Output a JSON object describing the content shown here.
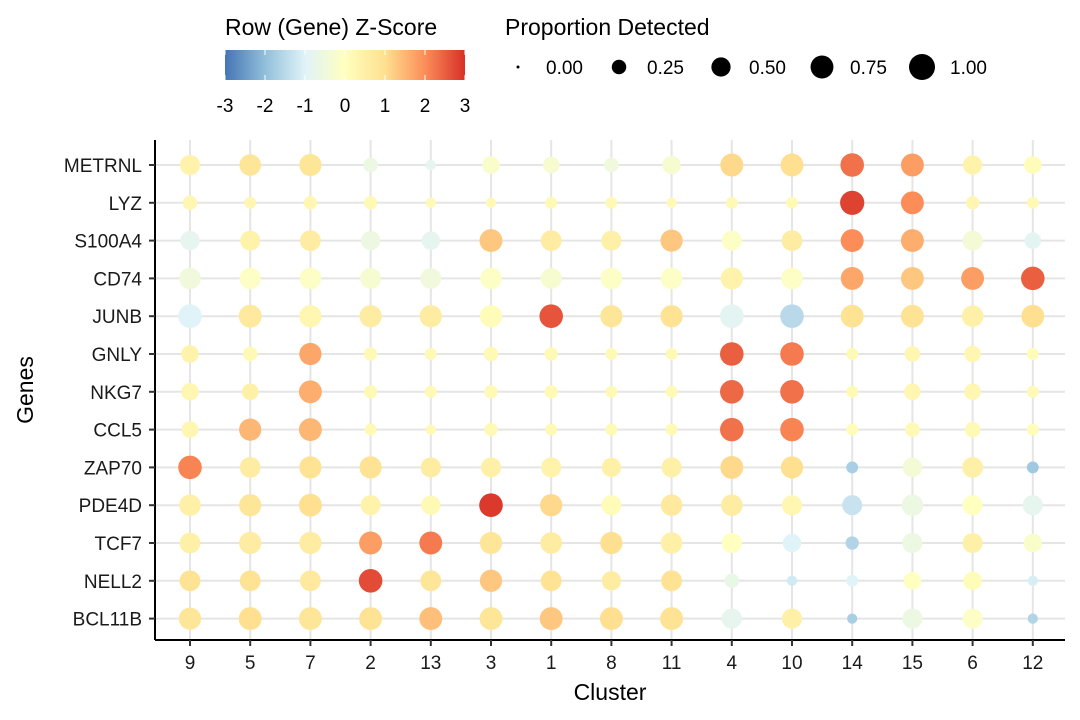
{
  "chart_data": {
    "type": "scatter",
    "subtype": "dot-plot",
    "xlabel": "Cluster",
    "ylabel": "Genes",
    "categories": [
      "9",
      "5",
      "7",
      "2",
      "13",
      "3",
      "1",
      "8",
      "11",
      "4",
      "10",
      "14",
      "15",
      "6",
      "12"
    ],
    "genes": [
      "METRNL",
      "LYZ",
      "S100A4",
      "CD74",
      "JUNB",
      "GNLY",
      "NKG7",
      "CCL5",
      "ZAP70",
      "PDE4D",
      "TCF7",
      "NELL2",
      "BCL11B"
    ],
    "grid": true,
    "legend_position": "top",
    "color_legend": {
      "title": "Row (Gene) Z-Score",
      "ticks": [
        "-3",
        "-2",
        "-1",
        "0",
        "1",
        "2",
        "3"
      ],
      "range": [
        -3,
        3
      ],
      "palette": [
        "#4575b4",
        "#91bfdb",
        "#e0f3f8",
        "#ffffbf",
        "#fee090",
        "#fc8d59",
        "#d73027"
      ]
    },
    "size_legend": {
      "title": "Proportion Detected",
      "values": [
        0.0,
        0.25,
        0.5,
        0.75,
        1.0
      ],
      "labels": [
        "0.00",
        "0.25",
        "0.50",
        "0.75",
        "1.00"
      ]
    },
    "zscore": [
      [
        0.4,
        0.8,
        0.8,
        -0.6,
        -0.8,
        -0.2,
        -0.3,
        -0.5,
        -0.3,
        1.1,
        1.0,
        2.3,
        1.8,
        0.4,
        0.1
      ],
      [
        0.3,
        0.3,
        0.3,
        0.2,
        0.2,
        0.2,
        0.2,
        0.2,
        0.2,
        0.2,
        0.2,
        2.8,
        2.0,
        0.3,
        0.2
      ],
      [
        -0.8,
        0.4,
        0.6,
        -0.6,
        -0.8,
        1.3,
        0.6,
        0.5,
        1.3,
        -0.1,
        0.6,
        2.0,
        1.6,
        -0.4,
        -0.9
      ],
      [
        -0.5,
        -0.1,
        -0.1,
        -0.3,
        -0.5,
        -0.1,
        -0.3,
        -0.1,
        -0.1,
        0.4,
        -0.1,
        1.7,
        1.3,
        1.8,
        2.5
      ],
      [
        -1.0,
        0.7,
        0.3,
        0.6,
        0.6,
        0.1,
        2.6,
        0.8,
        0.9,
        -0.9,
        -1.5,
        0.9,
        0.9,
        0.5,
        1.0
      ],
      [
        0.4,
        0.2,
        1.7,
        0.2,
        0.2,
        0.2,
        0.2,
        0.2,
        0.2,
        2.5,
        2.2,
        0.2,
        0.3,
        0.3,
        0.1
      ],
      [
        0.3,
        0.5,
        1.6,
        0.2,
        0.2,
        0.2,
        0.2,
        0.2,
        0.2,
        2.4,
        2.3,
        0.2,
        0.3,
        0.3,
        0.2
      ],
      [
        0.3,
        1.5,
        1.5,
        0.2,
        0.2,
        0.2,
        0.2,
        0.2,
        0.2,
        2.3,
        2.1,
        0.1,
        0.2,
        0.2,
        0.1
      ],
      [
        2.1,
        0.6,
        0.9,
        0.9,
        0.6,
        0.5,
        0.4,
        0.5,
        0.5,
        1.1,
        1.0,
        -1.7,
        -0.4,
        0.5,
        -1.8
      ],
      [
        0.5,
        0.8,
        1.0,
        0.4,
        0.2,
        2.9,
        1.1,
        0.1,
        0.7,
        0.6,
        0.3,
        -1.3,
        -0.6,
        0.0,
        -0.8
      ],
      [
        0.5,
        0.6,
        0.6,
        1.8,
        2.2,
        0.8,
        0.6,
        1.0,
        0.5,
        0.0,
        -1.0,
        -1.6,
        -0.6,
        0.5,
        -0.2
      ],
      [
        0.9,
        0.9,
        0.7,
        2.7,
        0.8,
        1.3,
        0.9,
        0.6,
        0.9,
        -0.7,
        -1.2,
        -1.0,
        0.0,
        0.1,
        -1.1
      ],
      [
        0.8,
        1.0,
        0.8,
        0.9,
        1.4,
        0.8,
        1.3,
        1.0,
        0.9,
        -0.8,
        0.5,
        -1.7,
        -0.6,
        -0.1,
        -1.6
      ]
    ],
    "proportion": [
      [
        0.55,
        0.65,
        0.7,
        0.25,
        0.1,
        0.4,
        0.35,
        0.25,
        0.45,
        0.75,
        0.75,
        0.8,
        0.75,
        0.5,
        0.4
      ],
      [
        0.25,
        0.15,
        0.2,
        0.2,
        0.1,
        0.1,
        0.15,
        0.15,
        0.1,
        0.15,
        0.15,
        0.85,
        0.75,
        0.2,
        0.15
      ],
      [
        0.5,
        0.55,
        0.6,
        0.5,
        0.45,
        0.75,
        0.6,
        0.55,
        0.7,
        0.55,
        0.6,
        0.75,
        0.75,
        0.55,
        0.35
      ],
      [
        0.65,
        0.65,
        0.65,
        0.6,
        0.6,
        0.65,
        0.6,
        0.65,
        0.65,
        0.7,
        0.65,
        0.75,
        0.75,
        0.75,
        0.8
      ],
      [
        0.8,
        0.75,
        0.7,
        0.7,
        0.7,
        0.7,
        0.8,
        0.7,
        0.7,
        0.8,
        0.8,
        0.75,
        0.75,
        0.65,
        0.75
      ],
      [
        0.4,
        0.25,
        0.7,
        0.2,
        0.15,
        0.25,
        0.2,
        0.15,
        0.15,
        0.8,
        0.8,
        0.15,
        0.3,
        0.35,
        0.15
      ],
      [
        0.4,
        0.35,
        0.75,
        0.2,
        0.15,
        0.2,
        0.2,
        0.15,
        0.15,
        0.8,
        0.8,
        0.15,
        0.35,
        0.35,
        0.15
      ],
      [
        0.35,
        0.7,
        0.75,
        0.15,
        0.1,
        0.2,
        0.15,
        0.15,
        0.15,
        0.8,
        0.8,
        0.15,
        0.25,
        0.3,
        0.15
      ],
      [
        0.8,
        0.6,
        0.7,
        0.7,
        0.55,
        0.55,
        0.55,
        0.5,
        0.55,
        0.75,
        0.7,
        0.15,
        0.5,
        0.6,
        0.15
      ],
      [
        0.65,
        0.7,
        0.75,
        0.55,
        0.5,
        0.8,
        0.7,
        0.55,
        0.65,
        0.65,
        0.55,
        0.55,
        0.65,
        0.55,
        0.55
      ],
      [
        0.6,
        0.7,
        0.7,
        0.75,
        0.75,
        0.7,
        0.65,
        0.7,
        0.65,
        0.55,
        0.45,
        0.2,
        0.55,
        0.55,
        0.45
      ],
      [
        0.6,
        0.6,
        0.6,
        0.8,
        0.6,
        0.7,
        0.6,
        0.5,
        0.6,
        0.25,
        0.1,
        0.15,
        0.4,
        0.45,
        0.1
      ],
      [
        0.7,
        0.75,
        0.75,
        0.75,
        0.75,
        0.75,
        0.75,
        0.75,
        0.75,
        0.55,
        0.55,
        0.1,
        0.55,
        0.55,
        0.1
      ]
    ]
  }
}
